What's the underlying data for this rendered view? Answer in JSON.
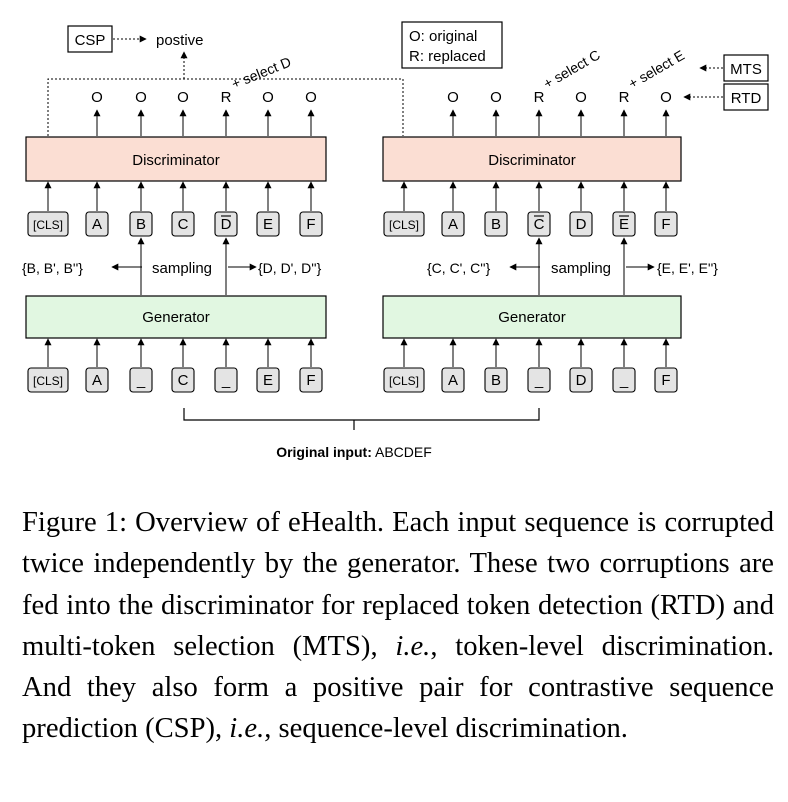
{
  "diagram": {
    "csp_label": "CSP",
    "positive_label": "postive",
    "legend": {
      "original": "O: original",
      "replaced": "R: replaced"
    },
    "mts_label": "MTS",
    "rtd_label": "RTD",
    "original_input": {
      "label": "Original input:",
      "value": "ABCDEF"
    },
    "sampling_label": "sampling",
    "discriminator_label": "Discriminator",
    "generator_label": "Generator",
    "left": {
      "disc_outputs": [
        "O",
        "O",
        "O",
        "R",
        "O",
        "O"
      ],
      "disc_tokens": [
        "[CLS]",
        "A",
        "B",
        "C",
        "D",
        "E",
        "F"
      ],
      "overlined_disc_token_index": 4,
      "gen_tokens": [
        "[CLS]",
        "A",
        "_",
        "C",
        "_",
        "E",
        "F"
      ],
      "select_annotation": "+ select D",
      "sample_set_left": "{B, B', B''}",
      "sample_set_right": "{D, D', D''}"
    },
    "right": {
      "disc_outputs": [
        "O",
        "O",
        "R",
        "O",
        "R",
        "O"
      ],
      "disc_tokens": [
        "[CLS]",
        "A",
        "B",
        "C",
        "D",
        "E",
        "F"
      ],
      "overlined_disc_token_indices": [
        3,
        5
      ],
      "gen_tokens": [
        "[CLS]",
        "A",
        "B",
        "_",
        "D",
        "_",
        "F"
      ],
      "select_annotation_1": "+ select C",
      "select_annotation_2": "+ select E",
      "sample_set_left": "{C, C', C''}",
      "sample_set_right": "{E, E', E''}"
    },
    "colors": {
      "discriminator_fill": "#fbded3",
      "generator_fill": "#e1f7e1",
      "token_fill": "#e4e4e4",
      "stroke": "#000000"
    }
  },
  "caption": {
    "prefix": "Figure 1: Overview of eHealth. Each input sequence is corrupted twice independently by the generator. These two corruptions are fed into the discriminator for replaced token detection (RTD) and multi-token selection (MTS), ",
    "ie1": "i.e.",
    "middle": ", token-level discrimination. And they also form a positive pair for contrastive sequence prediction (CSP), ",
    "ie2": "i.e.",
    "suffix": ", sequence-level discrimination."
  }
}
